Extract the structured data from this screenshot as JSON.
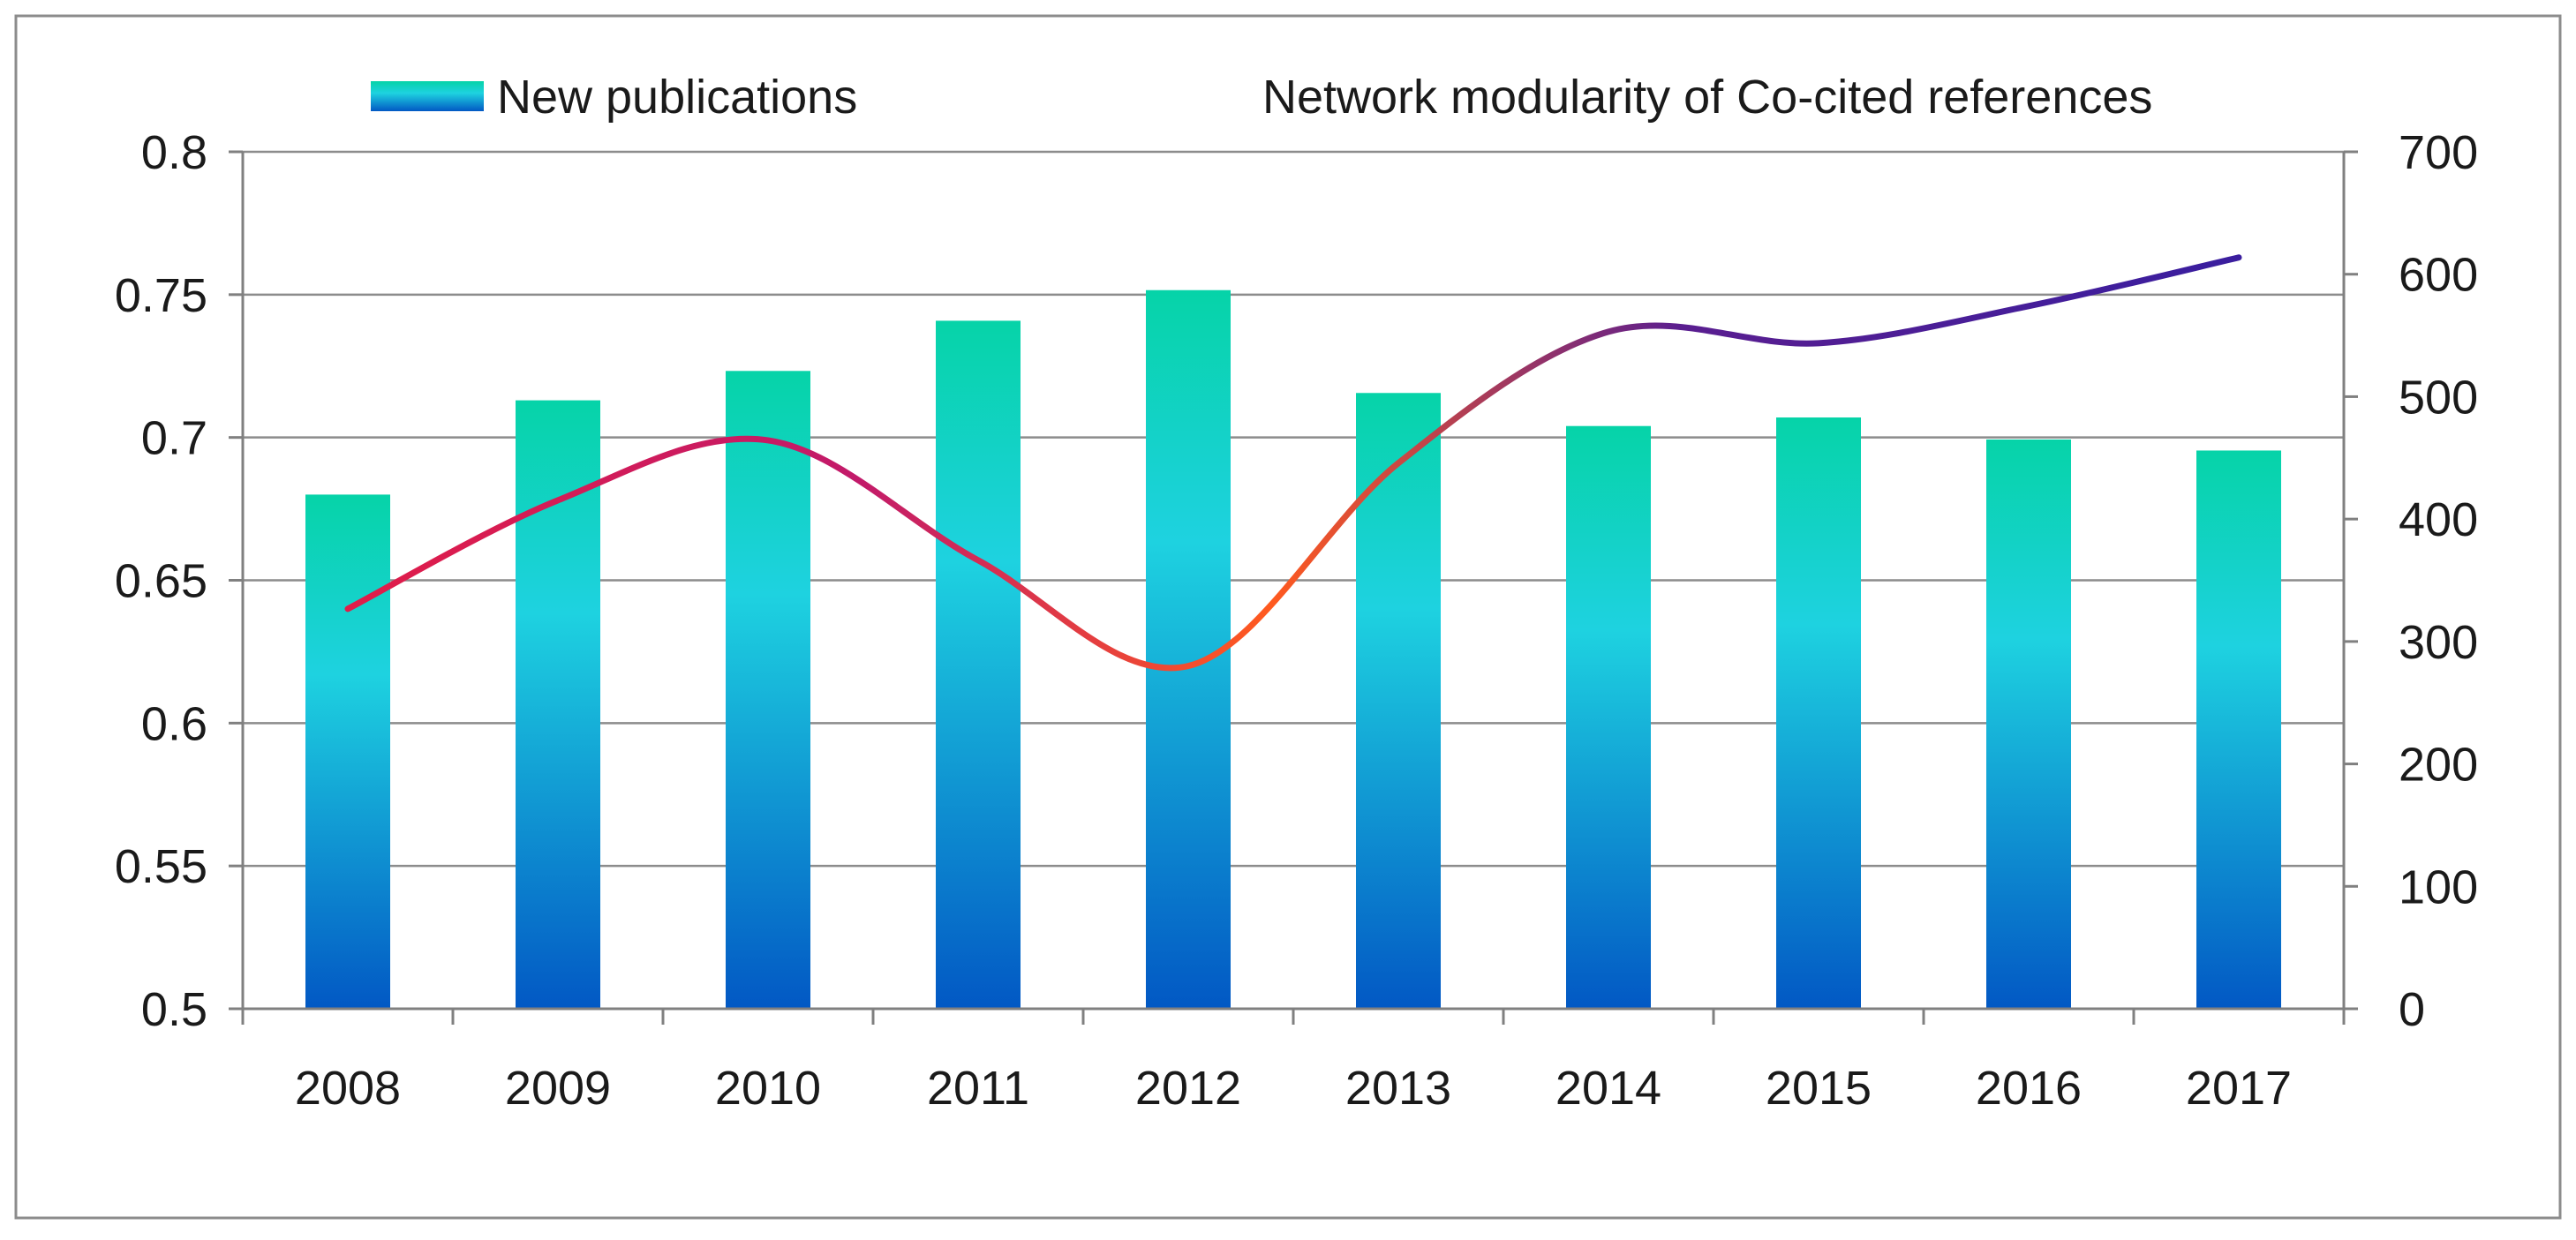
{
  "chart_data": {
    "type": "bar+line",
    "categories": [
      "2008",
      "2009",
      "2010",
      "2011",
      "2012",
      "2013",
      "2014",
      "2015",
      "2016",
      "2017"
    ],
    "series": [
      {
        "name": "New publications",
        "type": "bar",
        "axis": "right",
        "values": [
          420,
          497,
          521,
          562,
          587,
          503,
          476,
          483,
          465,
          456
        ]
      },
      {
        "name": "Network modularity of Co-cited references",
        "type": "line",
        "axis": "left",
        "smooth": true,
        "values": [
          0.64,
          0.678,
          0.699,
          0.657,
          0.62,
          0.691,
          0.737,
          0.733,
          0.746,
          0.763
        ]
      }
    ],
    "y_left": {
      "min": 0.5,
      "max": 0.8,
      "ticks": [
        "0.5",
        "0.55",
        "0.6",
        "0.65",
        "0.7",
        "0.75",
        "0.8"
      ]
    },
    "y_right": {
      "min": 0,
      "max": 700,
      "ticks": [
        "0",
        "100",
        "200",
        "300",
        "400",
        "500",
        "600",
        "700"
      ]
    },
    "grid": true,
    "legend": "top",
    "title": "",
    "xlabel": "",
    "ylabel": "",
    "colors": {
      "bar_top": "#06d3a8",
      "bar_mid": "#1ed2e0",
      "bar_bottom": "#0258c4",
      "line_start": "#e11d48",
      "line_mid": "#ff5a1f",
      "line_end": "#3b1e9e",
      "grid": "#8c8c8c",
      "axis": "#808080",
      "border": "#8c8c8c"
    }
  }
}
